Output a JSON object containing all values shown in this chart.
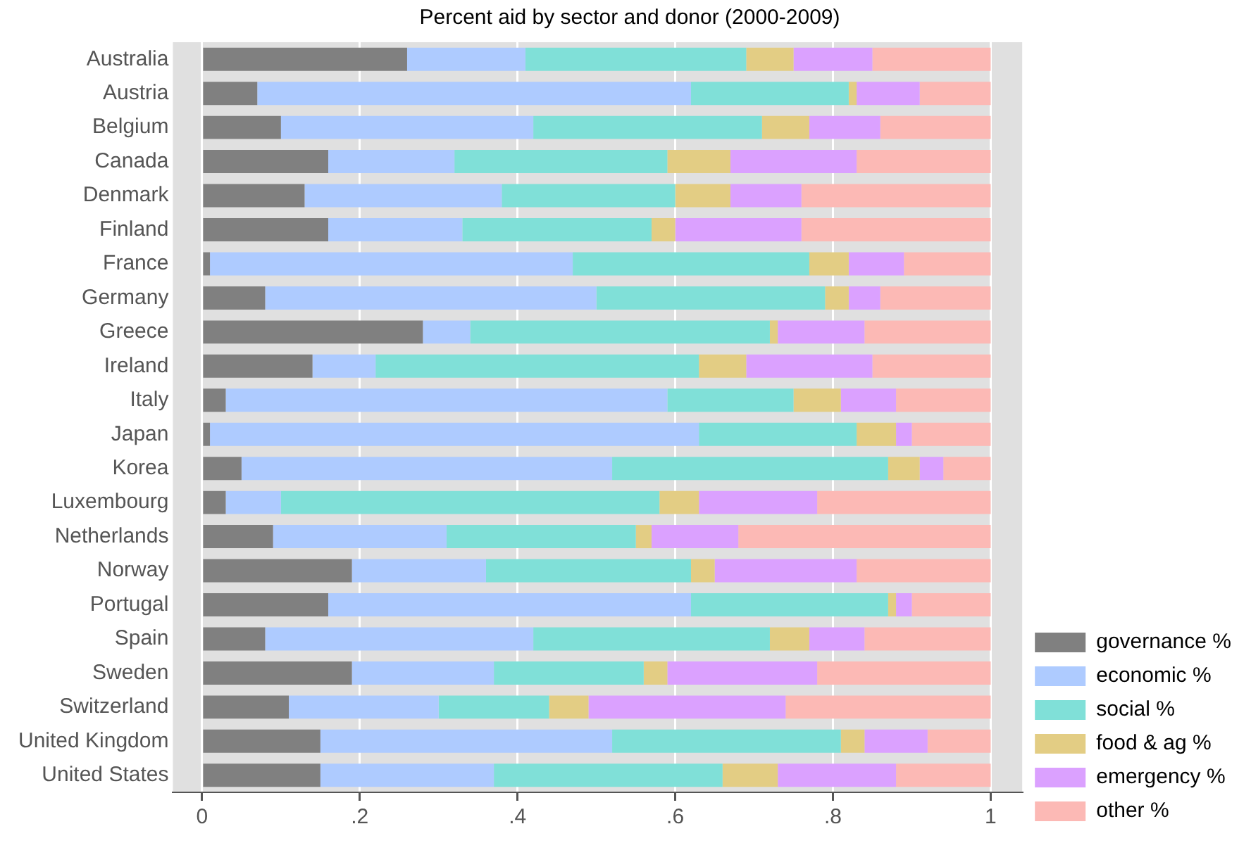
{
  "chart_data": {
    "type": "bar",
    "orientation": "horizontal",
    "stacked": true,
    "title": "Percent aid by sector and donor (2000-2009)",
    "categories": [
      "Australia",
      "Austria",
      "Belgium",
      "Canada",
      "Denmark",
      "Finland",
      "France",
      "Germany",
      "Greece",
      "Ireland",
      "Italy",
      "Japan",
      "Korea",
      "Luxembourg",
      "Netherlands",
      "Norway",
      "Portugal",
      "Spain",
      "Sweden",
      "Switzerland",
      "United Kingdom",
      "United States"
    ],
    "series": [
      {
        "name": "governance %",
        "color": "#808080",
        "values": [
          0.26,
          0.07,
          0.1,
          0.16,
          0.13,
          0.16,
          0.01,
          0.08,
          0.28,
          0.14,
          0.03,
          0.01,
          0.05,
          0.03,
          0.09,
          0.19,
          0.16,
          0.08,
          0.19,
          0.11,
          0.15,
          0.15
        ]
      },
      {
        "name": "economic %",
        "color": "#aecbff",
        "values": [
          0.15,
          0.55,
          0.32,
          0.16,
          0.25,
          0.17,
          0.46,
          0.42,
          0.06,
          0.08,
          0.56,
          0.62,
          0.47,
          0.07,
          0.22,
          0.17,
          0.46,
          0.34,
          0.18,
          0.19,
          0.37,
          0.22
        ]
      },
      {
        "name": "social %",
        "color": "#80e0d8",
        "values": [
          0.28,
          0.2,
          0.29,
          0.27,
          0.22,
          0.24,
          0.3,
          0.29,
          0.38,
          0.41,
          0.16,
          0.2,
          0.35,
          0.48,
          0.24,
          0.26,
          0.25,
          0.3,
          0.19,
          0.14,
          0.29,
          0.29
        ]
      },
      {
        "name": "food & ag %",
        "color": "#e3cd84",
        "values": [
          0.06,
          0.01,
          0.06,
          0.08,
          0.07,
          0.03,
          0.05,
          0.03,
          0.01,
          0.06,
          0.06,
          0.05,
          0.04,
          0.05,
          0.02,
          0.03,
          0.01,
          0.05,
          0.03,
          0.05,
          0.03,
          0.07
        ]
      },
      {
        "name": "emergency %",
        "color": "#dba1ff",
        "values": [
          0.1,
          0.08,
          0.09,
          0.16,
          0.09,
          0.16,
          0.07,
          0.04,
          0.11,
          0.16,
          0.07,
          0.02,
          0.03,
          0.15,
          0.11,
          0.18,
          0.02,
          0.07,
          0.19,
          0.25,
          0.08,
          0.15
        ]
      },
      {
        "name": "other %",
        "color": "#fcb9b5",
        "values": [
          0.15,
          0.09,
          0.14,
          0.17,
          0.24,
          0.24,
          0.11,
          0.14,
          0.16,
          0.15,
          0.12,
          0.1,
          0.06,
          0.22,
          0.32,
          0.17,
          0.1,
          0.16,
          0.22,
          0.26,
          0.08,
          0.12
        ]
      }
    ],
    "xlim": [
      -0.037,
      1.04
    ],
    "xticks": [
      {
        "value": 0,
        "label": "0"
      },
      {
        "value": 0.2,
        "label": ".2"
      },
      {
        "value": 0.4,
        "label": ".4"
      },
      {
        "value": 0.6,
        "label": ".6"
      },
      {
        "value": 0.8,
        "label": ".8"
      },
      {
        "value": 1,
        "label": "1"
      }
    ],
    "grid": "x",
    "legend": "bottom right"
  }
}
